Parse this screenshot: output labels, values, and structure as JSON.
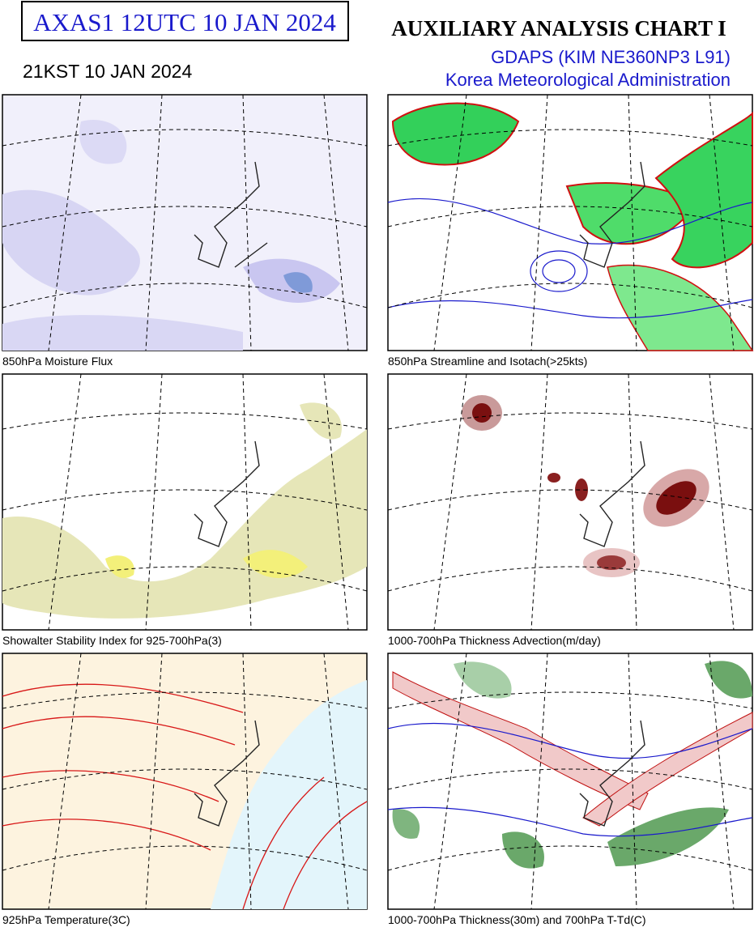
{
  "header": {
    "code": "AXAS1  12UTC 10 JAN 2024",
    "local_time": "21KST 10 JAN 2024",
    "title": "AUXILIARY ANALYSIS CHART  I",
    "model": "GDAPS (KIM NE360NP3 L91)",
    "agency": "Korea Meteorological Administration"
  },
  "panels": [
    {
      "caption": "850hPa Moisture Flux"
    },
    {
      "caption": "850hPa Streamline and Isotach(>25kts)"
    },
    {
      "caption": "Showalter Stability Index for 925-700hPa(3)"
    },
    {
      "caption": "1000-700hPa Thickness Advection(m/day)"
    },
    {
      "caption": "925hPa Temperature(3C)"
    },
    {
      "caption": "1000-700hPa Thickness(30m) and 700hPa T-Td(C)"
    }
  ]
}
